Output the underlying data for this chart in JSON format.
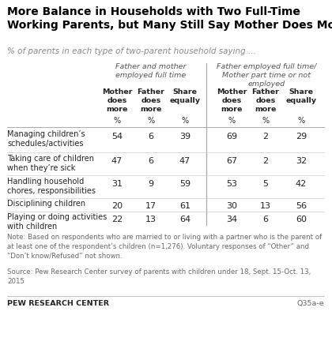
{
  "title": "More Balance in Households with Two Full-Time\nWorking Parents, but Many Still Say Mother Does More",
  "subtitle": "% of parents in each type of two-parent household saying ...",
  "group1_header": "Father and mother\nemployed full time",
  "group2_header": "Father employed full time/\nMother part time or not\nemployed",
  "col_headers": [
    "Mother\ndoes\nmore",
    "Father\ndoes\nmore",
    "Share\nequally"
  ],
  "pct_label": "%",
  "row_labels": [
    "Managing children’s\nschedules/activities",
    "Taking care of children\nwhen they’re sick",
    "Handling household\nchores, responsibilities",
    "Disciplining children",
    "Playing or doing activities\nwith children"
  ],
  "group1_data": [
    [
      54,
      6,
      39
    ],
    [
      47,
      6,
      47
    ],
    [
      31,
      9,
      59
    ],
    [
      20,
      17,
      61
    ],
    [
      22,
      13,
      64
    ]
  ],
  "group2_data": [
    [
      69,
      2,
      29
    ],
    [
      67,
      2,
      32
    ],
    [
      53,
      5,
      42
    ],
    [
      30,
      13,
      56
    ],
    [
      34,
      6,
      60
    ]
  ],
  "note": "Note: Based on respondents who are married to or living with a partner who is the parent of\nat least one of the respondent’s children (n=1,276). Voluntary responses of “Other” and\n“Don’t know/Refused” not shown.",
  "source": "Source: Pew Research Center survey of parents with children under 18, Sept. 15-Oct. 13,\n2015",
  "logo": "PEW RESEARCH CENTER",
  "ref": "Q35a-e",
  "bg_color": "#ffffff",
  "title_color": "#000000",
  "subtitle_color": "#888888",
  "header_color": "#555555",
  "data_color": "#222222",
  "note_color": "#666666",
  "divider_color": "#aaaaaa",
  "sep_color": "#cccccc"
}
